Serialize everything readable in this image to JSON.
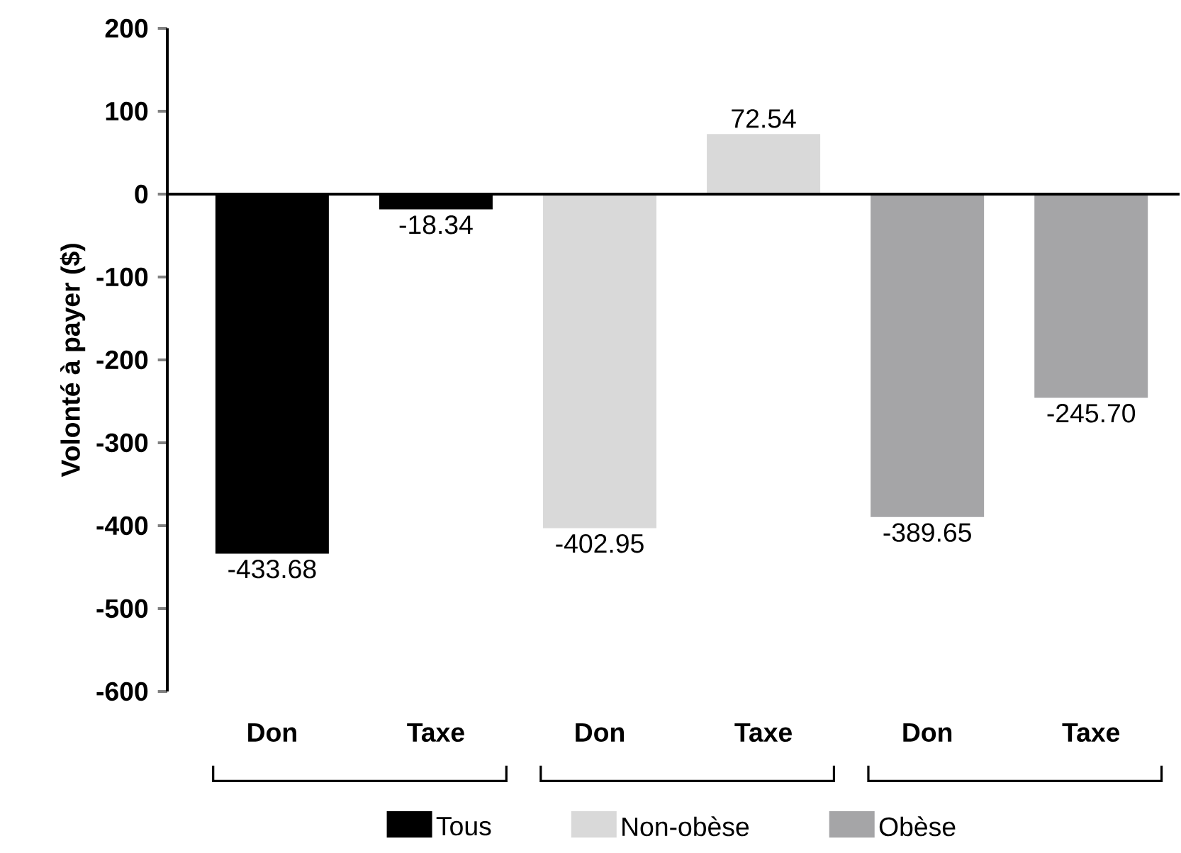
{
  "chart_data": {
    "type": "bar",
    "ylabel": "Volonté à payer ($)",
    "categories": [
      "Don",
      "Taxe",
      "Don",
      "Taxe",
      "Don",
      "Taxe"
    ],
    "series": [
      {
        "name": "Tous",
        "color": "#000000",
        "values": [
          -433.68,
          -18.34,
          null,
          null,
          null,
          null
        ],
        "value_labels": [
          "-433.68",
          "-18.34",
          null,
          null,
          null,
          null
        ]
      },
      {
        "name": "Non-obèse",
        "color": "#d9d9d9",
        "values": [
          null,
          null,
          -402.95,
          72.54,
          null,
          null
        ],
        "value_labels": [
          null,
          null,
          "-402.95",
          "72.54",
          null,
          null
        ]
      },
      {
        "name": "Obèse",
        "color": "#a5a5a7",
        "values": [
          null,
          null,
          null,
          null,
          -389.65,
          -245.7
        ],
        "value_labels": [
          null,
          null,
          null,
          null,
          "-389.65",
          "-245.70"
        ]
      }
    ],
    "ylim": [
      -600,
      200
    ],
    "yticks": [
      -600,
      -500,
      -400,
      -300,
      -200,
      -100,
      0,
      100,
      200
    ],
    "legend": "bottom"
  }
}
